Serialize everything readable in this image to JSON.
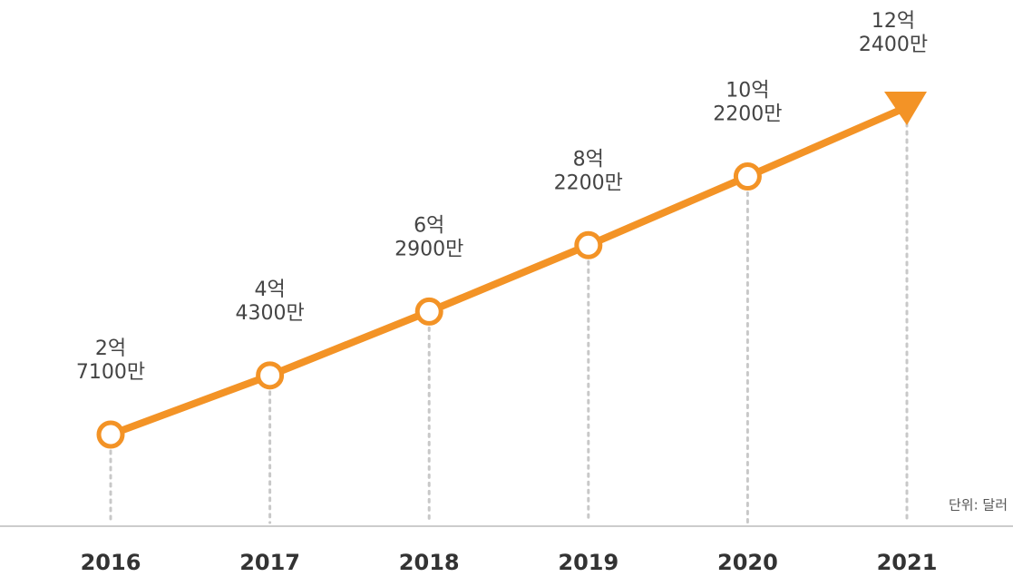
{
  "chart_data": {
    "type": "line",
    "categories": [
      "2016",
      "2017",
      "2018",
      "2019",
      "2020",
      "2021"
    ],
    "series": [
      {
        "color": "#f39326",
        "values": [
          271000000,
          443000000,
          629000000,
          822000000,
          1022000000,
          1224000000
        ]
      }
    ],
    "value_labels": [
      [
        "2억",
        "7100만"
      ],
      [
        "4억",
        "4300만"
      ],
      [
        "6억",
        "2900만"
      ],
      [
        "8억",
        "2200만"
      ],
      [
        "10억",
        "2200만"
      ],
      [
        "12억",
        "2400만"
      ]
    ],
    "unit_label": "단위: 달러"
  }
}
